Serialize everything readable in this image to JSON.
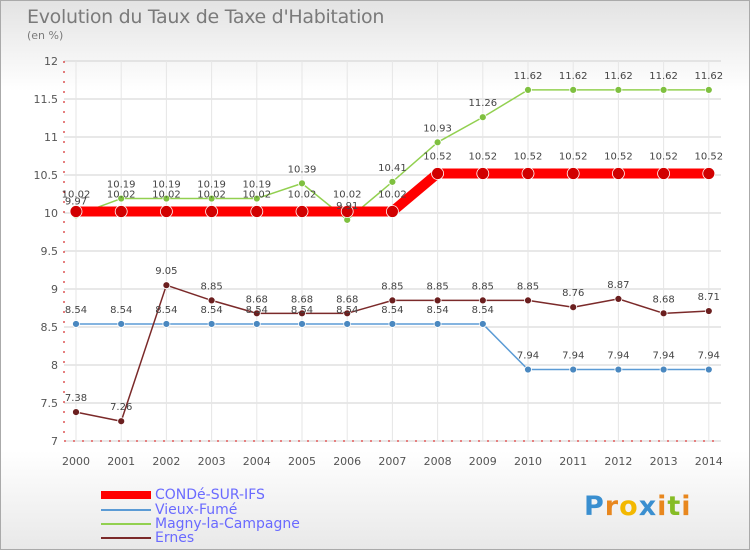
{
  "chart_data": {
    "type": "line",
    "title": "Evolution du Taux de Taxe d'Habitation",
    "subtitle": "(en %)",
    "x": [
      "2000",
      "2001",
      "2002",
      "2003",
      "2004",
      "2005",
      "2006",
      "2007",
      "2008",
      "2009",
      "2010",
      "2011",
      "2012",
      "2013",
      "2014"
    ],
    "y_ticks": [
      "7",
      "7.5",
      "8",
      "8.5",
      "9",
      "9.5",
      "10",
      "10.5",
      "11",
      "11.5",
      "12"
    ],
    "ylim": [
      7,
      12
    ],
    "grid": true,
    "legend_position": "bottom-left",
    "series": [
      {
        "name": "CONDé-SUR-IFS",
        "color": "#ff0000",
        "values": [
          10.02,
          10.02,
          10.02,
          10.02,
          10.02,
          10.02,
          10.02,
          10.02,
          10.52,
          10.52,
          10.52,
          10.52,
          10.52,
          10.52,
          10.52
        ]
      },
      {
        "name": "Vieux-Fumé",
        "color": "#5b9bd5",
        "values": [
          8.54,
          8.54,
          8.54,
          8.54,
          8.54,
          8.54,
          8.54,
          8.54,
          8.54,
          8.54,
          7.94,
          7.94,
          7.94,
          7.94,
          7.94
        ]
      },
      {
        "name": "Magny-la-Campagne",
        "color": "#92d050",
        "values": [
          9.97,
          10.19,
          10.19,
          10.19,
          10.19,
          10.39,
          9.91,
          10.41,
          10.93,
          11.26,
          11.62,
          11.62,
          11.62,
          11.62,
          11.62
        ]
      },
      {
        "name": "Ernes",
        "color": "#7b2a2a",
        "values": [
          7.38,
          7.26,
          9.05,
          8.85,
          8.68,
          8.68,
          8.68,
          8.85,
          8.85,
          8.85,
          8.85,
          8.76,
          8.87,
          8.68,
          8.71
        ]
      }
    ],
    "data_labels": {
      "CONDé-SUR-IFS": [
        "10.02",
        "10.02",
        "10.02",
        "10.02",
        "10.02",
        "10.02",
        "10.02",
        "10.02",
        "10.52",
        "10.52",
        "10.52",
        "10.52",
        "10.52",
        "10.52",
        "10.52"
      ],
      "Vieux-Fumé": [
        "8.54",
        "8.54",
        "8.54",
        "8.54",
        "8.54",
        "8.54",
        "8.54",
        "8.54",
        "8.54",
        "8.54",
        "7.94",
        "7.94",
        "7.94",
        "7.94",
        "7.94"
      ],
      "Magny-la-Campagne": [
        "9.97",
        "10.19",
        "10.19",
        "10.19",
        "10.19",
        "10.39",
        "9.91",
        "10.41",
        "10.93",
        "11.26",
        "11.62",
        "11.62",
        "11.62",
        "11.62",
        "11.62"
      ],
      "Ernes": [
        "7.38",
        "7.26",
        "9.05",
        "8.85",
        "8.68",
        "8.68",
        "8.68",
        "8.85",
        "8.85",
        "8.85",
        "8.85",
        "8.76",
        "8.87",
        "8.68",
        "8.71"
      ]
    }
  },
  "legend": {
    "items": [
      {
        "label": "CONDé-SUR-IFS",
        "color": "#ff0000"
      },
      {
        "label": "Vieux-Fumé",
        "color": "#5b9bd5"
      },
      {
        "label": "Magny-la-Campagne",
        "color": "#92d050"
      },
      {
        "label": "Ernes",
        "color": "#7b2a2a"
      }
    ]
  },
  "logo": {
    "text": "Proxiti",
    "colors": [
      "#3a8fd0",
      "#e8871e",
      "#f3b800",
      "#3a8fd0",
      "#e8871e",
      "#86bc25",
      "#e8871e"
    ]
  }
}
